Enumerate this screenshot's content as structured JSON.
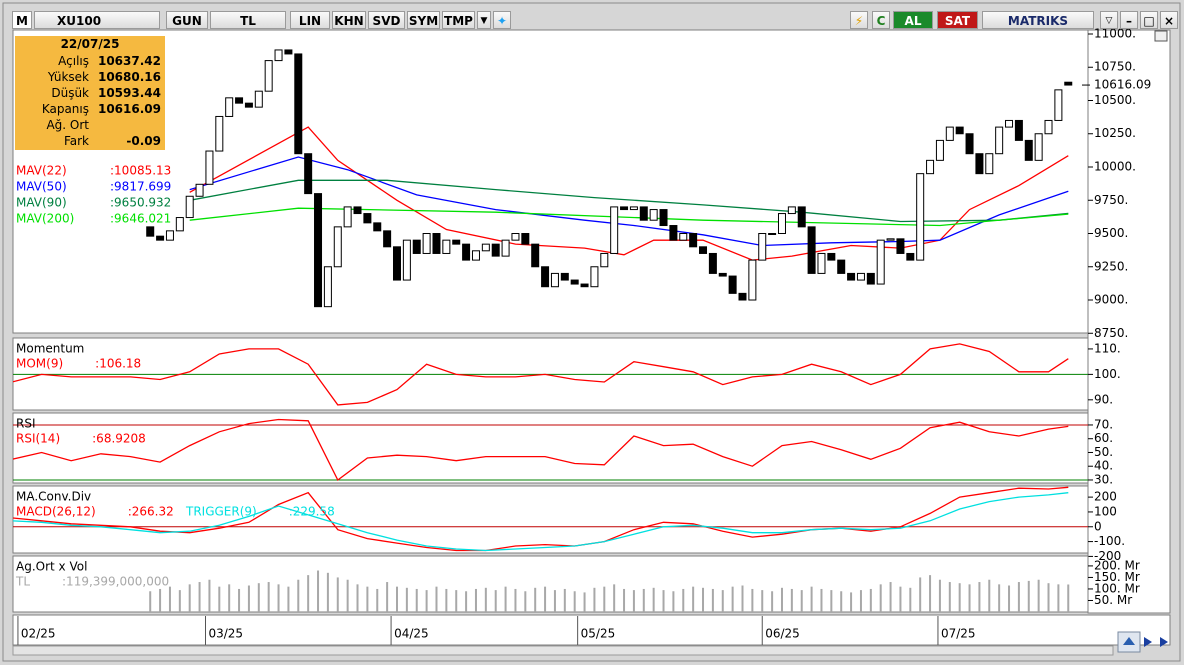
{
  "toolbar": {
    "logo": "M",
    "symbol": "XU100",
    "buttons": [
      "GUN",
      "TL",
      "LIN",
      "KHN",
      "SVD",
      "SYM",
      "TMP"
    ],
    "buy": "AL",
    "sell": "SAT",
    "brand": "MATRIKS"
  },
  "info_box": {
    "date": "22/07/25",
    "rows": [
      {
        "label": "Açılış",
        "value": 10637.42
      },
      {
        "label": "Yüksek",
        "value": 10680.16
      },
      {
        "label": "Düşük",
        "value": 10593.44
      },
      {
        "label": "Kapanış",
        "value": 10616.09
      },
      {
        "label": "Ağ. Ort"
      },
      {
        "label": "Fark",
        "value": -0.09
      }
    ]
  },
  "chart_data": [
    {
      "type": "candlestick",
      "xlim": [
        -13.9,
        95
      ],
      "ylim": [
        8752,
        11030
      ],
      "yticks": [
        {
          "value": 11000,
          "label": "11000."
        },
        {
          "value": 10750,
          "label": "10750."
        },
        {
          "value": 10500,
          "label": "10500."
        },
        {
          "value": 10250,
          "label": "10250."
        },
        {
          "value": 10000,
          "label": "10000."
        },
        {
          "value": 9750,
          "label": "9750."
        },
        {
          "value": 9500,
          "label": "9500."
        },
        {
          "value": 9250,
          "label": "9250."
        },
        {
          "value": 9000,
          "label": "9000."
        },
        {
          "value": 8750,
          "label": "8750."
        }
      ],
      "xticks": [
        {
          "value": -13.4,
          "label": "02/25"
        },
        {
          "value": 5.6,
          "label": "03/25"
        },
        {
          "value": 24.4,
          "label": "04/25"
        },
        {
          "value": 43.3,
          "label": "05/25"
        },
        {
          "value": 62,
          "label": "06/25"
        },
        {
          "value": 79.8,
          "label": "07/25"
        }
      ],
      "up_color": "#ffffff",
      "down_color": "#000000",
      "open": [
        9550,
        9480,
        9450,
        9520,
        9620,
        9780,
        9870,
        10120,
        10380,
        10520,
        10480,
        10450,
        10570,
        10800,
        10880,
        10850,
        10100,
        9800,
        8950,
        9250,
        9550,
        9700,
        9650,
        9580,
        9520,
        9400,
        9150,
        9450,
        9350,
        9500,
        9350,
        9450,
        9420,
        9300,
        9370,
        9420,
        9330,
        9450,
        9500,
        9420,
        9250,
        9100,
        9200,
        9150,
        9120,
        9100,
        9250,
        9350,
        9700,
        9680,
        9700,
        9600,
        9680,
        9560,
        9450,
        9500,
        9400,
        9350,
        9200,
        9180,
        9050,
        9000,
        9300,
        9500,
        9500,
        9650,
        9700,
        9550,
        9200,
        9350,
        9300,
        9200,
        9150,
        9200,
        9120,
        9450,
        9460,
        9350,
        9300,
        9950,
        10050,
        10200,
        10300,
        10250,
        10100,
        9950,
        10100,
        10300,
        10350,
        10200,
        10050,
        10250,
        10350,
        10637.42
      ],
      "close": [
        9480,
        9450,
        9520,
        9620,
        9780,
        9870,
        10120,
        10380,
        10520,
        10480,
        10450,
        10570,
        10800,
        10880,
        10850,
        10100,
        9800,
        8950,
        9250,
        9550,
        9700,
        9650,
        9580,
        9520,
        9400,
        9150,
        9450,
        9350,
        9500,
        9350,
        9450,
        9420,
        9300,
        9370,
        9420,
        9330,
        9450,
        9500,
        9420,
        9250,
        9100,
        9200,
        9150,
        9120,
        9100,
        9250,
        9350,
        9700,
        9680,
        9700,
        9600,
        9680,
        9560,
        9450,
        9500,
        9400,
        9350,
        9200,
        9180,
        9050,
        9000,
        9300,
        9500,
        9500,
        9650,
        9700,
        9550,
        9200,
        9350,
        9300,
        9200,
        9150,
        9200,
        9120,
        9450,
        9460,
        9350,
        9300,
        9950,
        10050,
        10200,
        10300,
        10250,
        10100,
        9950,
        10100,
        10300,
        10350,
        10200,
        10050,
        10250,
        10350,
        10580,
        10616.09
      ],
      "series": [
        {
          "name": "MAV(22)",
          "value_label": ":10085.13",
          "color": "#ff0000",
          "x": [
            4,
            16,
            19,
            25,
            30,
            37,
            44,
            48,
            51,
            56,
            61,
            65,
            71,
            76,
            80,
            83,
            88,
            93
          ],
          "values": [
            9810,
            10300,
            10050,
            9750,
            9530,
            9420,
            9390,
            9340,
            9450,
            9450,
            9300,
            9330,
            9410,
            9390,
            9450,
            9680,
            9860,
            10085.13
          ]
        },
        {
          "name": "MAV(50)",
          "value_label": ":9817.699",
          "color": "#0000ff",
          "x": [
            4,
            15,
            20,
            27,
            35,
            44,
            49,
            56,
            62,
            69,
            76,
            80,
            86,
            93
          ],
          "values": [
            9830,
            10075,
            9980,
            9790,
            9680,
            9600,
            9560,
            9490,
            9410,
            9430,
            9440,
            9450,
            9640,
            9817.699
          ]
        },
        {
          "name": "MAV(90)",
          "value_label": ":9650.932",
          "color": "#008040",
          "x": [
            4,
            15,
            24,
            35,
            45,
            56,
            66,
            76,
            86,
            93
          ],
          "values": [
            9750,
            9900,
            9900,
            9830,
            9770,
            9715,
            9660,
            9590,
            9600,
            9650.932
          ]
        },
        {
          "name": "MAV(200)",
          "value_label": ":9646.021",
          "color": "#00e000",
          "x": [
            4,
            15,
            35,
            56,
            80,
            93
          ],
          "values": [
            9600,
            9690,
            9660,
            9600,
            9560,
            9646.021
          ]
        }
      ]
    },
    {
      "type": "line",
      "title": "Momentum",
      "xlim": [
        -13.9,
        95
      ],
      "ylim": [
        86,
        114.3
      ],
      "yticks": [
        {
          "value": 110,
          "label": "110."
        },
        {
          "value": 100,
          "label": "100."
        },
        {
          "value": 90,
          "label": "90."
        }
      ],
      "reference_lines": [
        {
          "value": 100,
          "color": "#008000"
        }
      ],
      "series": [
        {
          "name": "MOM(9)",
          "value_label": ":106.18",
          "color": "#ff0000",
          "x": [
            -14,
            -11,
            -8,
            -5,
            -2,
            1,
            4,
            7,
            10,
            13,
            16,
            19,
            22,
            25,
            28,
            31,
            34,
            37,
            40,
            43,
            46,
            49,
            52,
            55,
            58,
            61,
            64,
            67,
            70,
            73,
            76,
            79,
            82,
            85,
            88,
            91,
            93
          ],
          "values": [
            97,
            100,
            99,
            99,
            99,
            98,
            101,
            108,
            110,
            110,
            104,
            88,
            89,
            94,
            104,
            100,
            99,
            99,
            100,
            98,
            97,
            105,
            103,
            101,
            96,
            99,
            100,
            104,
            101,
            96,
            100,
            110,
            112,
            109,
            101,
            101,
            106.18
          ]
        }
      ]
    },
    {
      "type": "line",
      "title": "RSI",
      "xlim": [
        -13.9,
        95
      ],
      "ylim": [
        27.8,
        78.7
      ],
      "yticks": [
        {
          "value": 70,
          "label": "70."
        },
        {
          "value": 60,
          "label": "60."
        },
        {
          "value": 50,
          "label": "50."
        },
        {
          "value": 40,
          "label": "40."
        },
        {
          "value": 30,
          "label": "30."
        }
      ],
      "reference_lines": [
        {
          "value": 70,
          "color": "#c00000"
        },
        {
          "value": 30,
          "color": "#008000"
        }
      ],
      "series": [
        {
          "name": "RSI(14)",
          "value_label": ":68.9208",
          "color": "#ff0000",
          "x": [
            -14,
            -11,
            -8,
            -5,
            -2,
            1,
            4,
            7,
            10,
            13,
            16,
            19,
            22,
            25,
            28,
            31,
            34,
            37,
            40,
            43,
            46,
            49,
            52,
            55,
            58,
            61,
            64,
            67,
            70,
            73,
            76,
            79,
            82,
            85,
            88,
            91,
            93
          ],
          "values": [
            45,
            50,
            44,
            49,
            47,
            43,
            55,
            65,
            71,
            74,
            73,
            30,
            46,
            48,
            47,
            44,
            47,
            47,
            47,
            42,
            41,
            62,
            55,
            56,
            47,
            40,
            55,
            58,
            52,
            45,
            53,
            68,
            72,
            65,
            62,
            67,
            68.9208
          ]
        }
      ]
    },
    {
      "type": "line",
      "title": "MA.Conv.Div",
      "xlim": [
        -13.9,
        95
      ],
      "ylim": [
        -177,
        275
      ],
      "yticks": [
        200,
        100,
        0,
        {
          "value": -100,
          "label": "-100."
        },
        -200
      ],
      "reference_lines": [
        {
          "value": 0,
          "color": "#c00000"
        }
      ],
      "series": [
        {
          "name": "MACD(26,12)",
          "value_label": ":266.32",
          "color": "#ff0000",
          "x": [
            -14,
            -11,
            -8,
            -5,
            -2,
            1,
            4,
            7,
            10,
            13,
            16,
            19,
            22,
            25,
            28,
            31,
            34,
            37,
            40,
            43,
            46,
            49,
            52,
            55,
            58,
            61,
            64,
            67,
            70,
            73,
            76,
            79,
            82,
            85,
            88,
            91,
            93
          ],
          "values": [
            60,
            40,
            20,
            10,
            0,
            -30,
            -40,
            -10,
            30,
            150,
            230,
            -20,
            -80,
            -110,
            -140,
            -160,
            -160,
            -130,
            -120,
            -130,
            -100,
            -20,
            30,
            20,
            -30,
            -70,
            -50,
            -20,
            -10,
            -30,
            0,
            90,
            200,
            230,
            260,
            255,
            266.32
          ]
        },
        {
          "name": "TRIGGER(9)",
          "value_label": ":229.58",
          "color": "#00e0e0",
          "x": [
            -14,
            -11,
            -8,
            -5,
            -2,
            1,
            4,
            7,
            10,
            13,
            16,
            19,
            22,
            25,
            28,
            31,
            34,
            37,
            40,
            43,
            46,
            49,
            52,
            55,
            58,
            61,
            64,
            67,
            70,
            73,
            76,
            79,
            82,
            85,
            88,
            91,
            93
          ],
          "values": [
            40,
            30,
            10,
            0,
            -20,
            -40,
            -30,
            10,
            70,
            140,
            80,
            20,
            -40,
            -90,
            -130,
            -150,
            -160,
            -150,
            -140,
            -130,
            -100,
            -50,
            0,
            10,
            -10,
            -40,
            -40,
            -20,
            -10,
            -20,
            -10,
            40,
            120,
            170,
            200,
            215,
            229.58
          ]
        }
      ]
    },
    {
      "type": "bar",
      "title": "Ag.Ort x Vol",
      "xlim": [
        -13.9,
        95
      ],
      "ylim": [
        0,
        243
      ],
      "yticks": [
        {
          "value": 200,
          "label": "200. Mr"
        },
        {
          "value": 150,
          "label": "150. Mr"
        },
        {
          "value": 100,
          "label": "100. Mr"
        },
        {
          "value": 50,
          "label": "50. Mr"
        }
      ],
      "series": [
        {
          "name": "TL",
          "value_label": ":119,399,000,000",
          "color": "#a8a8a8",
          "values": [
            90,
            100,
            110,
            95,
            120,
            130,
            140,
            110,
            120,
            100,
            115,
            125,
            130,
            120,
            110,
            140,
            160,
            180,
            170,
            150,
            140,
            120,
            110,
            100,
            130,
            110,
            105,
            100,
            95,
            110,
            100,
            95,
            90,
            100,
            105,
            95,
            110,
            100,
            90,
            105,
            110,
            95,
            100,
            90,
            85,
            105,
            110,
            120,
            100,
            95,
            100,
            105,
            95,
            90,
            100,
            110,
            105,
            100,
            95,
            110,
            115,
            100,
            95,
            90,
            105,
            100,
            95,
            110,
            100,
            95,
            90,
            85,
            95,
            100,
            120,
            130,
            110,
            105,
            150,
            160,
            140,
            130,
            125,
            120,
            130,
            140,
            120,
            115,
            130,
            135,
            140,
            125,
            120,
            119.399
          ]
        }
      ]
    }
  ]
}
